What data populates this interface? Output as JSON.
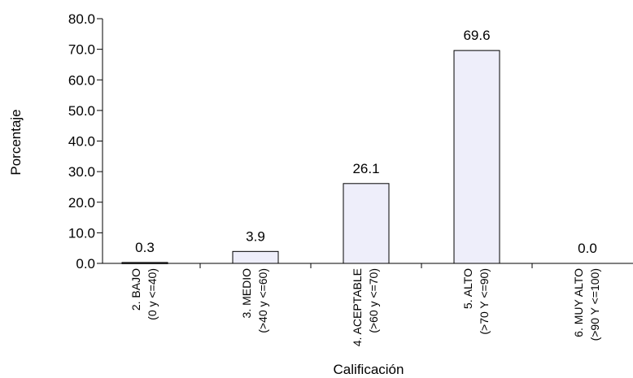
{
  "chart_data": {
    "type": "bar",
    "title": "",
    "xlabel": "Calificación",
    "ylabel": "Porcentaje",
    "ylim": [
      0,
      80
    ],
    "yticks": [
      "0.0",
      "10.0",
      "20.0",
      "30.0",
      "40.0",
      "50.0",
      "60.0",
      "70.0",
      "80.0"
    ],
    "categories": [
      [
        "2. BAJO",
        "(0 y <=40)"
      ],
      [
        "3. MEDIO",
        "(>40 y <=60)"
      ],
      [
        "4. ACEPTABLE",
        "(>60 y <=70)"
      ],
      [
        "5. ALTO",
        "(>70 Y <=90)"
      ],
      [
        "6. MUY ALTO",
        "(>90 Y <=100)"
      ]
    ],
    "values": [
      0.3,
      3.9,
      26.1,
      69.6,
      0.0
    ],
    "value_labels": [
      "0.3",
      "3.9",
      "26.1",
      "69.6",
      "0.0"
    ],
    "grid": false,
    "colors": {
      "bar_fill": "#eeeefa",
      "bar_stroke": "#000000",
      "axis": "#000000"
    }
  }
}
